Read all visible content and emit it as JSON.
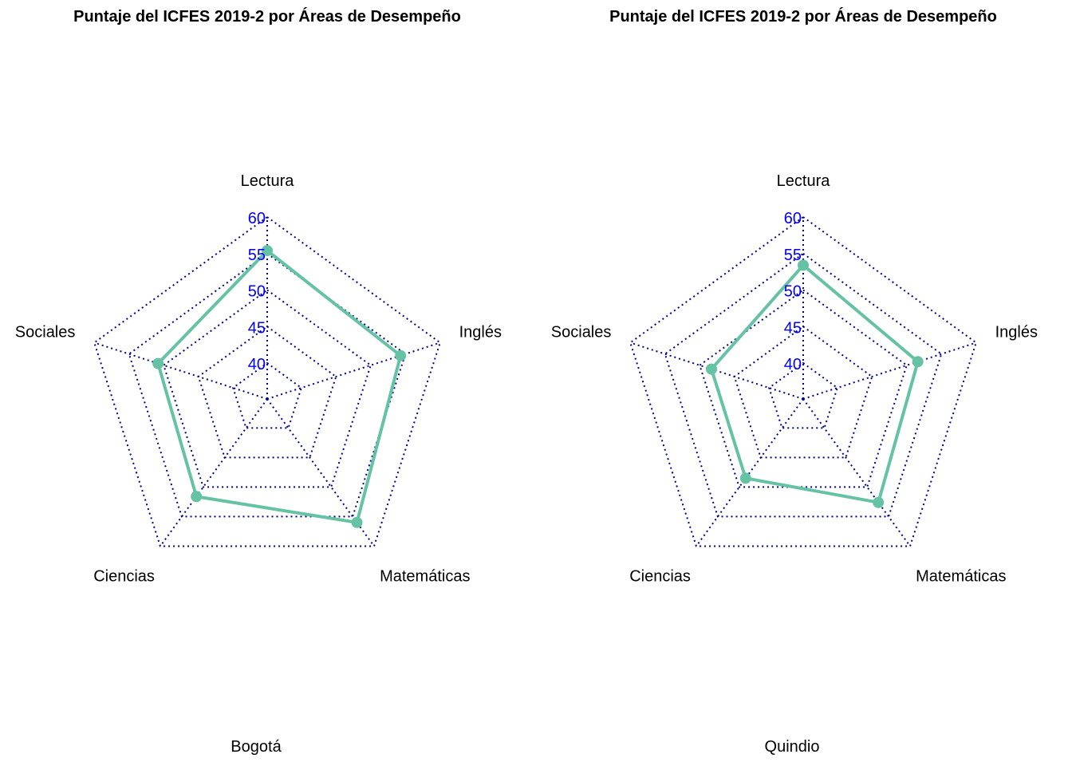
{
  "colors": {
    "grid": "#00008B",
    "tick": "#0000FF",
    "series": "#66C2A5",
    "text": "#000000"
  },
  "chart_data": [
    {
      "type": "radar",
      "title": "Puntaje del ICFES 2019-2 por Áreas de Desempeño",
      "caption": "Bogotá",
      "axes": [
        "Lectura",
        "Inglés",
        "Matemáticas",
        "Ciencias",
        "Sociales"
      ],
      "ticks": [
        40,
        45,
        50,
        55,
        60
      ],
      "range": [
        40,
        60
      ],
      "series": [
        {
          "name": "Bogotá",
          "values": [
            55.4,
            54.3,
            56.0,
            51.6,
            50.8
          ]
        }
      ]
    },
    {
      "type": "radar",
      "title": "Puntaje del ICFES 2019-2 por Áreas de Desempeño",
      "caption": "Quindio",
      "axes": [
        "Lectura",
        "Inglés",
        "Matemáticas",
        "Ciencias",
        "Sociales"
      ],
      "ticks": [
        40,
        45,
        50,
        55,
        60
      ],
      "range": [
        40,
        60
      ],
      "series": [
        {
          "name": "Quindio",
          "values": [
            53.4,
            51.6,
            52.6,
            48.5,
            48.3
          ]
        }
      ]
    }
  ]
}
